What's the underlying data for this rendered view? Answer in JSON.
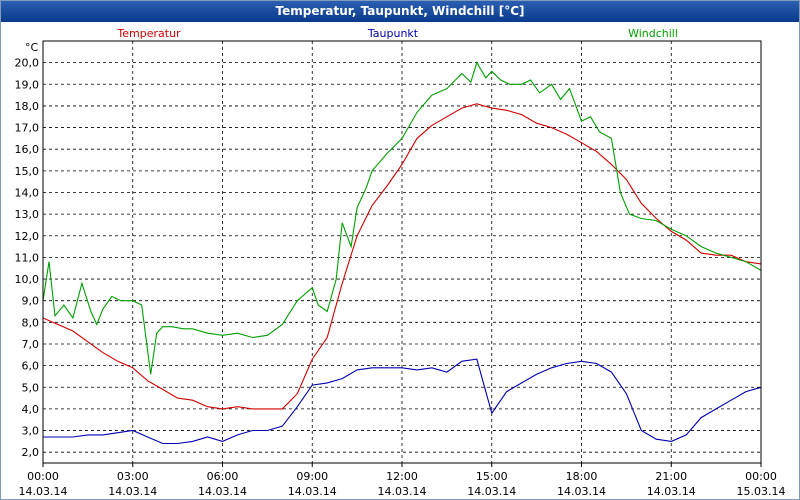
{
  "window": {
    "title": "Temperatur, Taupunkt, Windchill [°C]"
  },
  "chart_data": {
    "type": "line",
    "title": "Temperatur, Taupunkt, Windchill [°C]",
    "unit": "°C",
    "ylim": [
      1.5,
      21.0
    ],
    "yticks": [
      "2,0",
      "3,0",
      "4,0",
      "5,0",
      "6,0",
      "7,0",
      "8,0",
      "9,0",
      "10,0",
      "11,0",
      "12,0",
      "13,0",
      "14,0",
      "15,0",
      "16,0",
      "17,0",
      "18,0",
      "19,0",
      "20,0"
    ],
    "xlim_hours": [
      0,
      24
    ],
    "xticks": [
      {
        "time": "00:00",
        "date": "14.03.14"
      },
      {
        "time": "03:00",
        "date": "14.03.14"
      },
      {
        "time": "06:00",
        "date": "14.03.14"
      },
      {
        "time": "09:00",
        "date": "14.03.14"
      },
      {
        "time": "12:00",
        "date": "14.03.14"
      },
      {
        "time": "15:00",
        "date": "14.03.14"
      },
      {
        "time": "18:00",
        "date": "14.03.14"
      },
      {
        "time": "21:00",
        "date": "14.03.14"
      },
      {
        "time": "00:00",
        "date": "15.03.14"
      }
    ],
    "grid": true,
    "legend_placement": "top",
    "series": [
      {
        "name": "Temperatur",
        "color": "#d00000",
        "x": [
          0,
          0.5,
          1,
          1.5,
          2,
          2.5,
          3,
          3.5,
          4,
          4.5,
          5,
          5.5,
          6,
          6.5,
          7,
          7.5,
          8,
          8.5,
          9,
          9.5,
          10,
          10.5,
          11,
          11.5,
          12,
          12.5,
          13,
          13.5,
          14,
          14.5,
          15,
          15.5,
          16,
          16.5,
          17,
          17.5,
          18,
          18.5,
          19,
          19.5,
          20,
          20.5,
          21,
          21.5,
          22,
          22.5,
          23,
          23.5,
          24
        ],
        "values": [
          8.2,
          7.9,
          7.6,
          7.1,
          6.6,
          6.2,
          5.9,
          5.3,
          4.9,
          4.5,
          4.4,
          4.1,
          4.0,
          4.1,
          4.0,
          4.0,
          4.0,
          4.7,
          6.3,
          7.3,
          9.8,
          12.0,
          13.4,
          14.3,
          15.3,
          16.5,
          17.1,
          17.5,
          17.9,
          18.1,
          17.9,
          17.8,
          17.6,
          17.2,
          17.0,
          16.7,
          16.3,
          15.9,
          15.3,
          14.6,
          13.5,
          12.8,
          12.2,
          11.8,
          11.2,
          11.1,
          11.1,
          10.8,
          10.7
        ]
      },
      {
        "name": "Taupunkt",
        "color": "#0000b0",
        "x": [
          0,
          0.5,
          1,
          1.5,
          2,
          2.5,
          3,
          3.5,
          4,
          4.5,
          5,
          5.5,
          6,
          6.5,
          7,
          7.5,
          8,
          8.5,
          9,
          9.5,
          10,
          10.5,
          11,
          11.5,
          12,
          12.5,
          13,
          13.5,
          14,
          14.5,
          15,
          15.5,
          16,
          16.5,
          17,
          17.5,
          18,
          18.5,
          19,
          19.5,
          20,
          20.5,
          21,
          21.5,
          22,
          22.5,
          23,
          23.5,
          24
        ],
        "values": [
          2.7,
          2.7,
          2.7,
          2.8,
          2.8,
          2.9,
          3.0,
          2.7,
          2.4,
          2.4,
          2.5,
          2.7,
          2.5,
          2.8,
          3.0,
          3.0,
          3.2,
          4.1,
          5.1,
          5.2,
          5.4,
          5.8,
          5.9,
          5.9,
          5.9,
          5.8,
          5.9,
          5.7,
          6.2,
          6.3,
          3.8,
          4.8,
          5.2,
          5.6,
          5.9,
          6.1,
          6.2,
          6.1,
          5.7,
          4.7,
          3.0,
          2.6,
          2.5,
          2.8,
          3.6,
          4.0,
          4.4,
          4.8,
          5.0
        ]
      },
      {
        "name": "Windchill",
        "color": "#00a000",
        "x": [
          0,
          0.2,
          0.4,
          0.7,
          1,
          1.3,
          1.6,
          1.8,
          2,
          2.3,
          2.6,
          3,
          3.3,
          3.6,
          3.8,
          4,
          4.3,
          4.7,
          5,
          5.5,
          6,
          6.5,
          7,
          7.5,
          8,
          8.5,
          9,
          9.2,
          9.5,
          9.8,
          10,
          10.3,
          10.5,
          10.8,
          11,
          11.5,
          12,
          12.5,
          13,
          13.5,
          14,
          14.3,
          14.5,
          14.8,
          15,
          15.3,
          15.6,
          16,
          16.3,
          16.6,
          17,
          17.3,
          17.6,
          18,
          18.3,
          18.6,
          19,
          19.3,
          19.6,
          20,
          20.5,
          21,
          21.5,
          22,
          22.5,
          23,
          23.5,
          24
        ],
        "values": [
          9.0,
          10.8,
          8.3,
          8.8,
          8.2,
          9.8,
          8.5,
          7.9,
          8.6,
          9.2,
          9.0,
          9.0,
          8.8,
          5.6,
          7.5,
          7.8,
          7.8,
          7.7,
          7.7,
          7.5,
          7.4,
          7.5,
          7.3,
          7.4,
          7.9,
          9.0,
          9.6,
          8.8,
          8.5,
          10.0,
          12.6,
          11.5,
          13.3,
          14.2,
          15.0,
          15.8,
          16.5,
          17.7,
          18.5,
          18.8,
          19.5,
          19.1,
          20.0,
          19.3,
          19.6,
          19.2,
          19.0,
          19.0,
          19.2,
          18.6,
          19.0,
          18.3,
          18.8,
          17.3,
          17.5,
          16.8,
          16.5,
          14.0,
          13.0,
          12.8,
          12.7,
          12.3,
          12.0,
          11.5,
          11.2,
          11.0,
          10.8,
          10.4
        ]
      }
    ]
  }
}
